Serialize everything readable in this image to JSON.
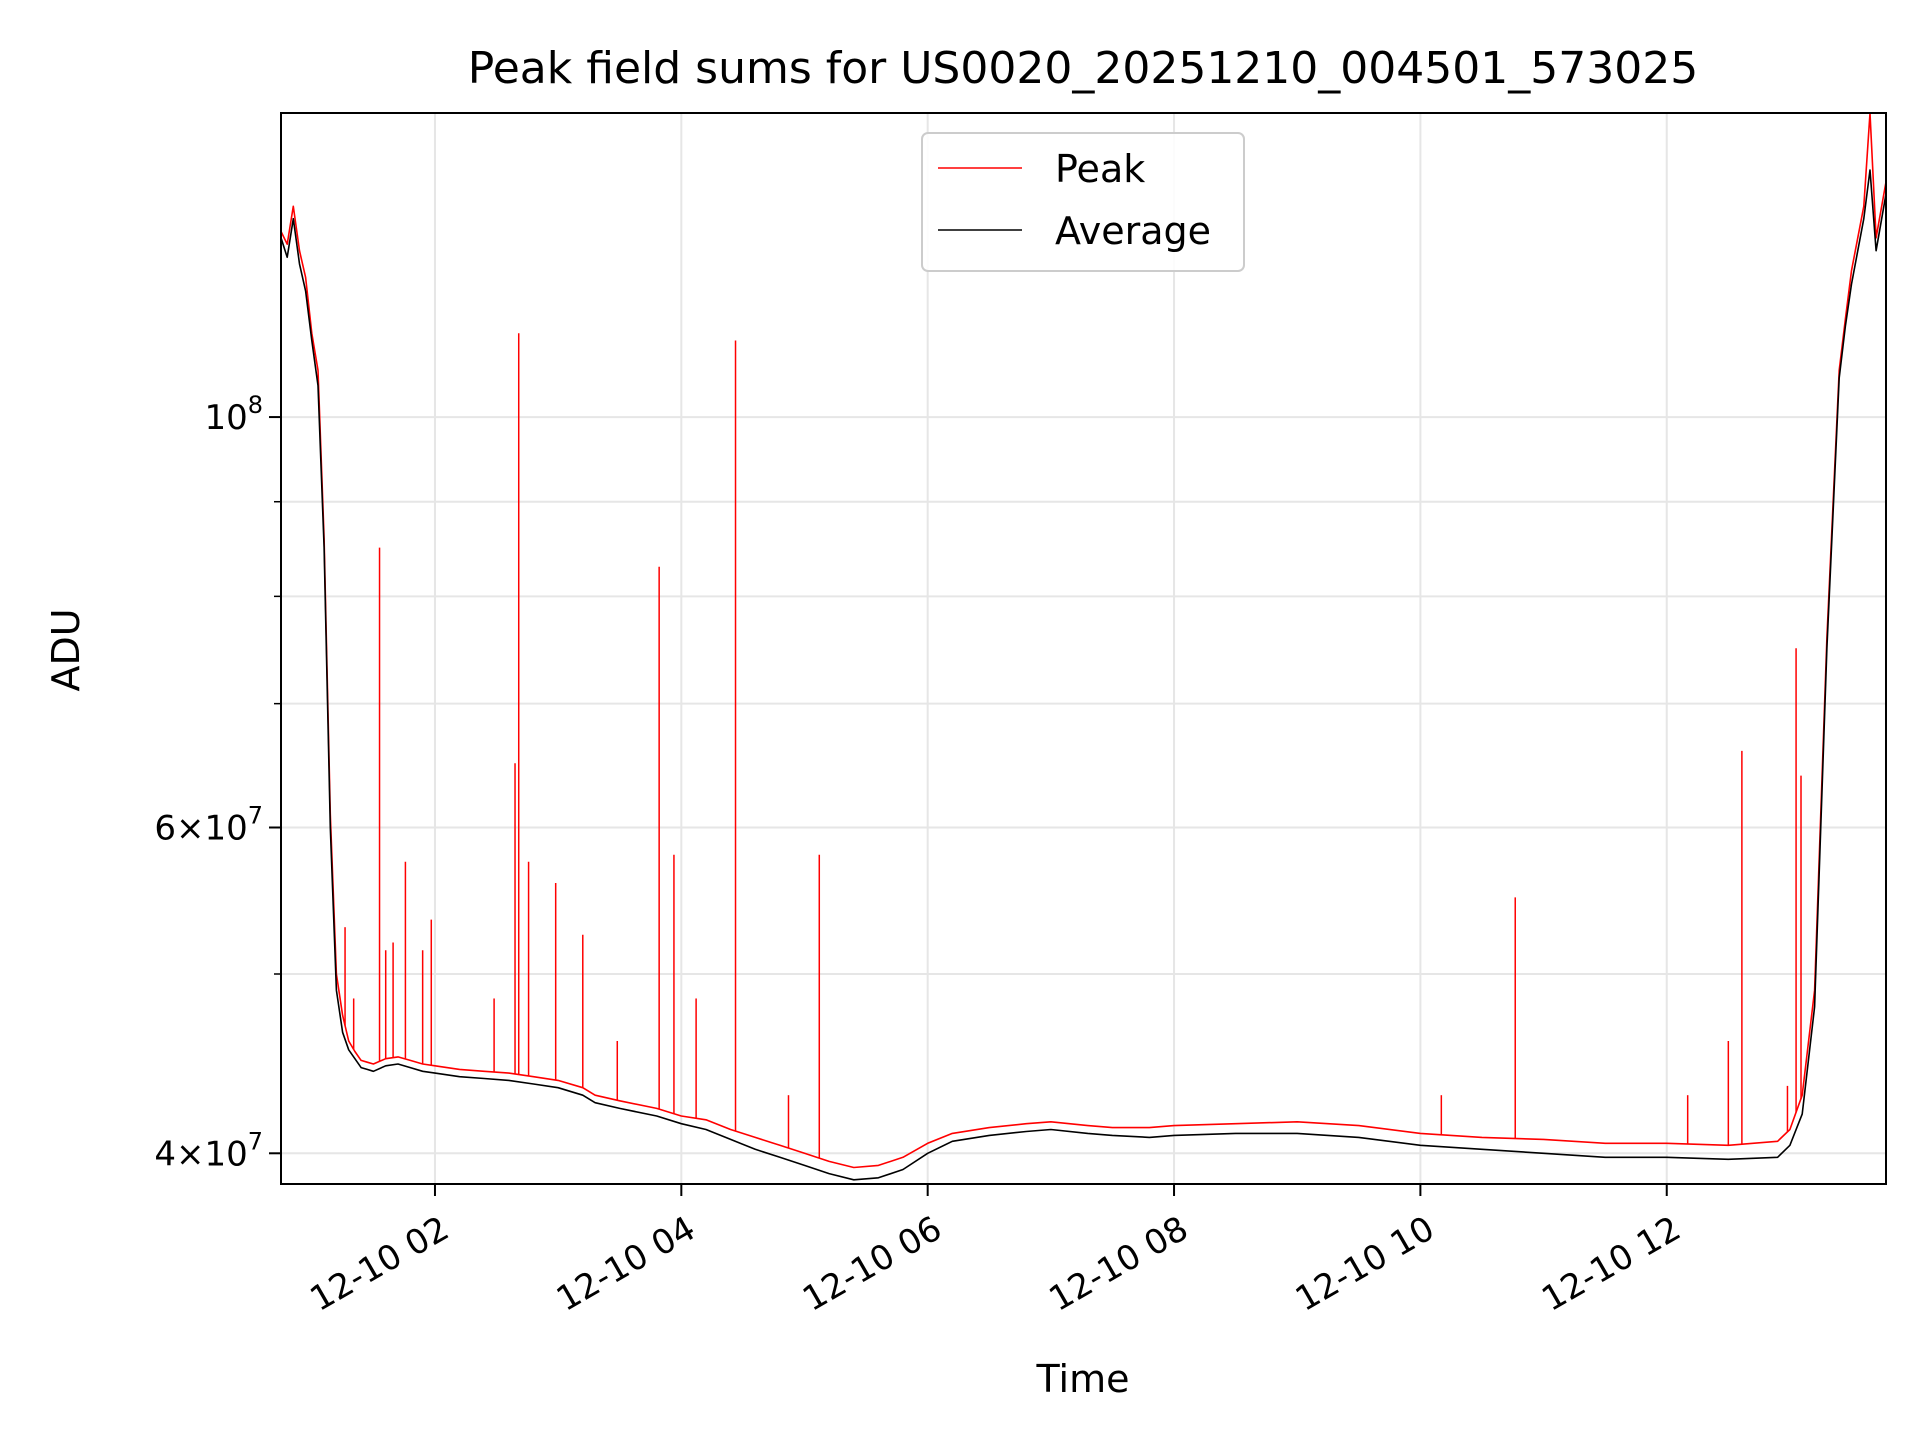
{
  "chart_data": {
    "type": "line",
    "title": "Peak field sums for US0020_20251210_004501_573025",
    "xlabel": "Time",
    "ylabel": "ADU",
    "yscale": "log",
    "grid": true,
    "legend_position": "upper center",
    "xlim": [
      0.75,
      13.78
    ],
    "ylim": [
      38500000,
      146000000
    ],
    "x_unit": "hours since 2025-12-10 00:00",
    "x_ticks": [
      {
        "value": 2,
        "label": "12-10 02"
      },
      {
        "value": 4,
        "label": "12-10 04"
      },
      {
        "value": 6,
        "label": "12-10 06"
      },
      {
        "value": 8,
        "label": "12-10 08"
      },
      {
        "value": 10,
        "label": "12-10 10"
      },
      {
        "value": 12,
        "label": "12-10 12"
      }
    ],
    "y_ticks": [
      {
        "value": 40000000,
        "base": "4×10",
        "exp": "7"
      },
      {
        "value": 60000000,
        "base": "6×10",
        "exp": "7"
      },
      {
        "value": 100000000,
        "base": "10",
        "exp": "8"
      }
    ],
    "y_minor_ticks": [
      50000000,
      70000000,
      80000000,
      90000000
    ],
    "series": [
      {
        "name": "Average",
        "color": "#000000",
        "x": [
          0.75,
          0.8,
          0.85,
          0.9,
          0.95,
          1.0,
          1.05,
          1.1,
          1.15,
          1.2,
          1.25,
          1.3,
          1.35,
          1.4,
          1.45,
          1.5,
          1.6,
          1.7,
          1.8,
          1.9,
          2.0,
          2.2,
          2.4,
          2.6,
          2.8,
          3.0,
          3.2,
          3.3,
          3.5,
          3.8,
          4.0,
          4.2,
          4.4,
          4.6,
          4.8,
          5.0,
          5.2,
          5.4,
          5.6,
          5.8,
          6.0,
          6.2,
          6.5,
          6.8,
          7.0,
          7.3,
          7.5,
          7.8,
          8.0,
          8.5,
          9.0,
          9.5,
          10.0,
          10.5,
          11.0,
          11.5,
          12.0,
          12.5,
          12.9,
          13.0,
          13.1,
          13.2,
          13.3,
          13.4,
          13.45,
          13.5,
          13.6,
          13.65,
          13.7,
          13.78
        ],
        "y": [
          125000000,
          122000000,
          128000000,
          121000000,
          117000000,
          110000000,
          104000000,
          85000000,
          60000000,
          49000000,
          46500000,
          45500000,
          45000000,
          44500000,
          44400000,
          44300000,
          44600000,
          44700000,
          44500000,
          44300000,
          44200000,
          44000000,
          43900000,
          43800000,
          43600000,
          43400000,
          43000000,
          42600000,
          42300000,
          41900000,
          41500000,
          41200000,
          40700000,
          40200000,
          39800000,
          39400000,
          39000000,
          38700000,
          38800000,
          39200000,
          40000000,
          40600000,
          40900000,
          41100000,
          41200000,
          41000000,
          40900000,
          40800000,
          40900000,
          41000000,
          41000000,
          40800000,
          40400000,
          40200000,
          40000000,
          39800000,
          39800000,
          39700000,
          39800000,
          40400000,
          42000000,
          48000000,
          75000000,
          105000000,
          112000000,
          118000000,
          128000000,
          136000000,
          123000000,
          132000000
        ]
      },
      {
        "name": "Peak",
        "color": "#ff0000",
        "x": [
          0.75,
          0.8,
          0.85,
          0.9,
          0.95,
          1.0,
          1.05,
          1.1,
          1.15,
          1.2,
          1.25,
          1.3,
          1.35,
          1.4,
          1.45,
          1.5,
          1.6,
          1.7,
          1.8,
          1.9,
          2.0,
          2.2,
          2.4,
          2.6,
          2.8,
          3.0,
          3.2,
          3.3,
          3.5,
          3.8,
          4.0,
          4.2,
          4.4,
          4.6,
          4.8,
          5.0,
          5.2,
          5.4,
          5.6,
          5.8,
          6.0,
          6.2,
          6.5,
          6.8,
          7.0,
          7.3,
          7.5,
          7.8,
          8.0,
          8.5,
          9.0,
          9.5,
          10.0,
          10.5,
          11.0,
          11.5,
          12.0,
          12.5,
          12.9,
          13.0,
          13.1,
          13.2,
          13.3,
          13.4,
          13.45,
          13.5,
          13.6,
          13.65,
          13.7,
          13.78
        ],
        "y": [
          126000000,
          124000000,
          130000000,
          123000000,
          119000000,
          111000000,
          106000000,
          86000000,
          61000000,
          50000000,
          47500000,
          46000000,
          45400000,
          44900000,
          44800000,
          44700000,
          45000000,
          45100000,
          44900000,
          44700000,
          44600000,
          44400000,
          44300000,
          44200000,
          44000000,
          43800000,
          43400000,
          43000000,
          42700000,
          42300000,
          41900000,
          41700000,
          41200000,
          40800000,
          40400000,
          40000000,
          39600000,
          39300000,
          39400000,
          39800000,
          40500000,
          41000000,
          41300000,
          41500000,
          41600000,
          41400000,
          41300000,
          41300000,
          41400000,
          41500000,
          41600000,
          41400000,
          41000000,
          40800000,
          40700000,
          40500000,
          40500000,
          40400000,
          40600000,
          41200000,
          43000000,
          49000000,
          76000000,
          106000000,
          113000000,
          120000000,
          130000000,
          146000000,
          125000000,
          134000000
        ],
        "spikes": [
          {
            "x": 1.27,
            "y": 53000000
          },
          {
            "x": 1.34,
            "y": 48500000
          },
          {
            "x": 1.55,
            "y": 85000000
          },
          {
            "x": 1.6,
            "y": 51500000
          },
          {
            "x": 1.66,
            "y": 52000000
          },
          {
            "x": 1.76,
            "y": 57500000
          },
          {
            "x": 1.9,
            "y": 51500000
          },
          {
            "x": 1.97,
            "y": 53500000
          },
          {
            "x": 2.48,
            "y": 48500000
          },
          {
            "x": 2.65,
            "y": 65000000
          },
          {
            "x": 2.68,
            "y": 111000000
          },
          {
            "x": 2.76,
            "y": 57500000
          },
          {
            "x": 2.98,
            "y": 56000000
          },
          {
            "x": 3.2,
            "y": 52500000
          },
          {
            "x": 3.48,
            "y": 46000000
          },
          {
            "x": 3.82,
            "y": 83000000
          },
          {
            "x": 3.94,
            "y": 58000000
          },
          {
            "x": 4.12,
            "y": 48500000
          },
          {
            "x": 4.44,
            "y": 110000000
          },
          {
            "x": 4.87,
            "y": 43000000
          },
          {
            "x": 5.12,
            "y": 58000000
          },
          {
            "x": 10.17,
            "y": 43000000
          },
          {
            "x": 10.77,
            "y": 55000000
          },
          {
            "x": 12.17,
            "y": 43000000
          },
          {
            "x": 12.5,
            "y": 46000000
          },
          {
            "x": 12.61,
            "y": 66000000
          },
          {
            "x": 12.98,
            "y": 43500000
          },
          {
            "x": 13.05,
            "y": 75000000
          },
          {
            "x": 13.09,
            "y": 64000000
          }
        ]
      }
    ]
  }
}
